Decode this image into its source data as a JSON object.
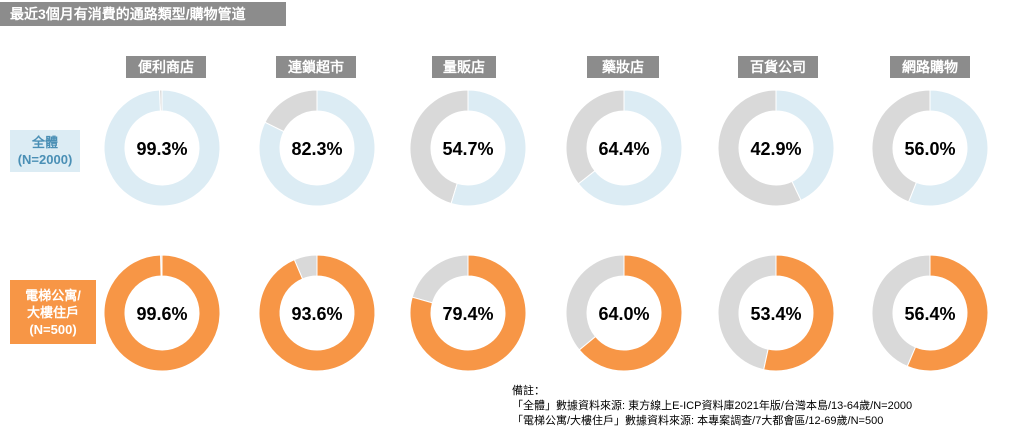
{
  "title": "最近3個月有消費的通路類型/購物管道",
  "row_labels": {
    "all": "全體\n(N=2000)",
    "apt": "電梯公寓/\n大樓住戶\n(N=500)"
  },
  "colors": {
    "title_bg": "#8c8c8c",
    "blue_fill": "#dcecf4",
    "orange_fill": "#f79646",
    "remainder": "#d9d9d9"
  },
  "chart_data": {
    "type": "donut",
    "categories": [
      "便利商店",
      "連鎖超市",
      "量販店",
      "藥妝店",
      "百貨公司",
      "網路購物"
    ],
    "series": [
      {
        "name": "全體\n(N=2000)",
        "values": [
          99.3,
          82.3,
          54.7,
          64.4,
          42.9,
          56.0
        ],
        "labels": [
          "99.3%",
          "82.3%",
          "54.7%",
          "64.4%",
          "42.9%",
          "56.0%"
        ],
        "color": "#dcecf4"
      },
      {
        "name": "電梯公寓/\n大樓住戶\n(N=500)",
        "values": [
          99.6,
          93.6,
          79.4,
          64.0,
          53.4,
          56.4
        ],
        "labels": [
          "99.6%",
          "93.6%",
          "79.4%",
          "64.0%",
          "53.4%",
          "56.4%"
        ],
        "color": "#f79646"
      }
    ]
  },
  "notes": {
    "heading": "備註：",
    "line1": "「全體」數據資料來源: 東方線上E-ICP資料庫2021年版/台灣本島/13-64歲/N=2000",
    "line2": "「電梯公寓/大樓住戶」數據資料來源: 本專案調查/7大都會區/12-69歲/N=500"
  }
}
